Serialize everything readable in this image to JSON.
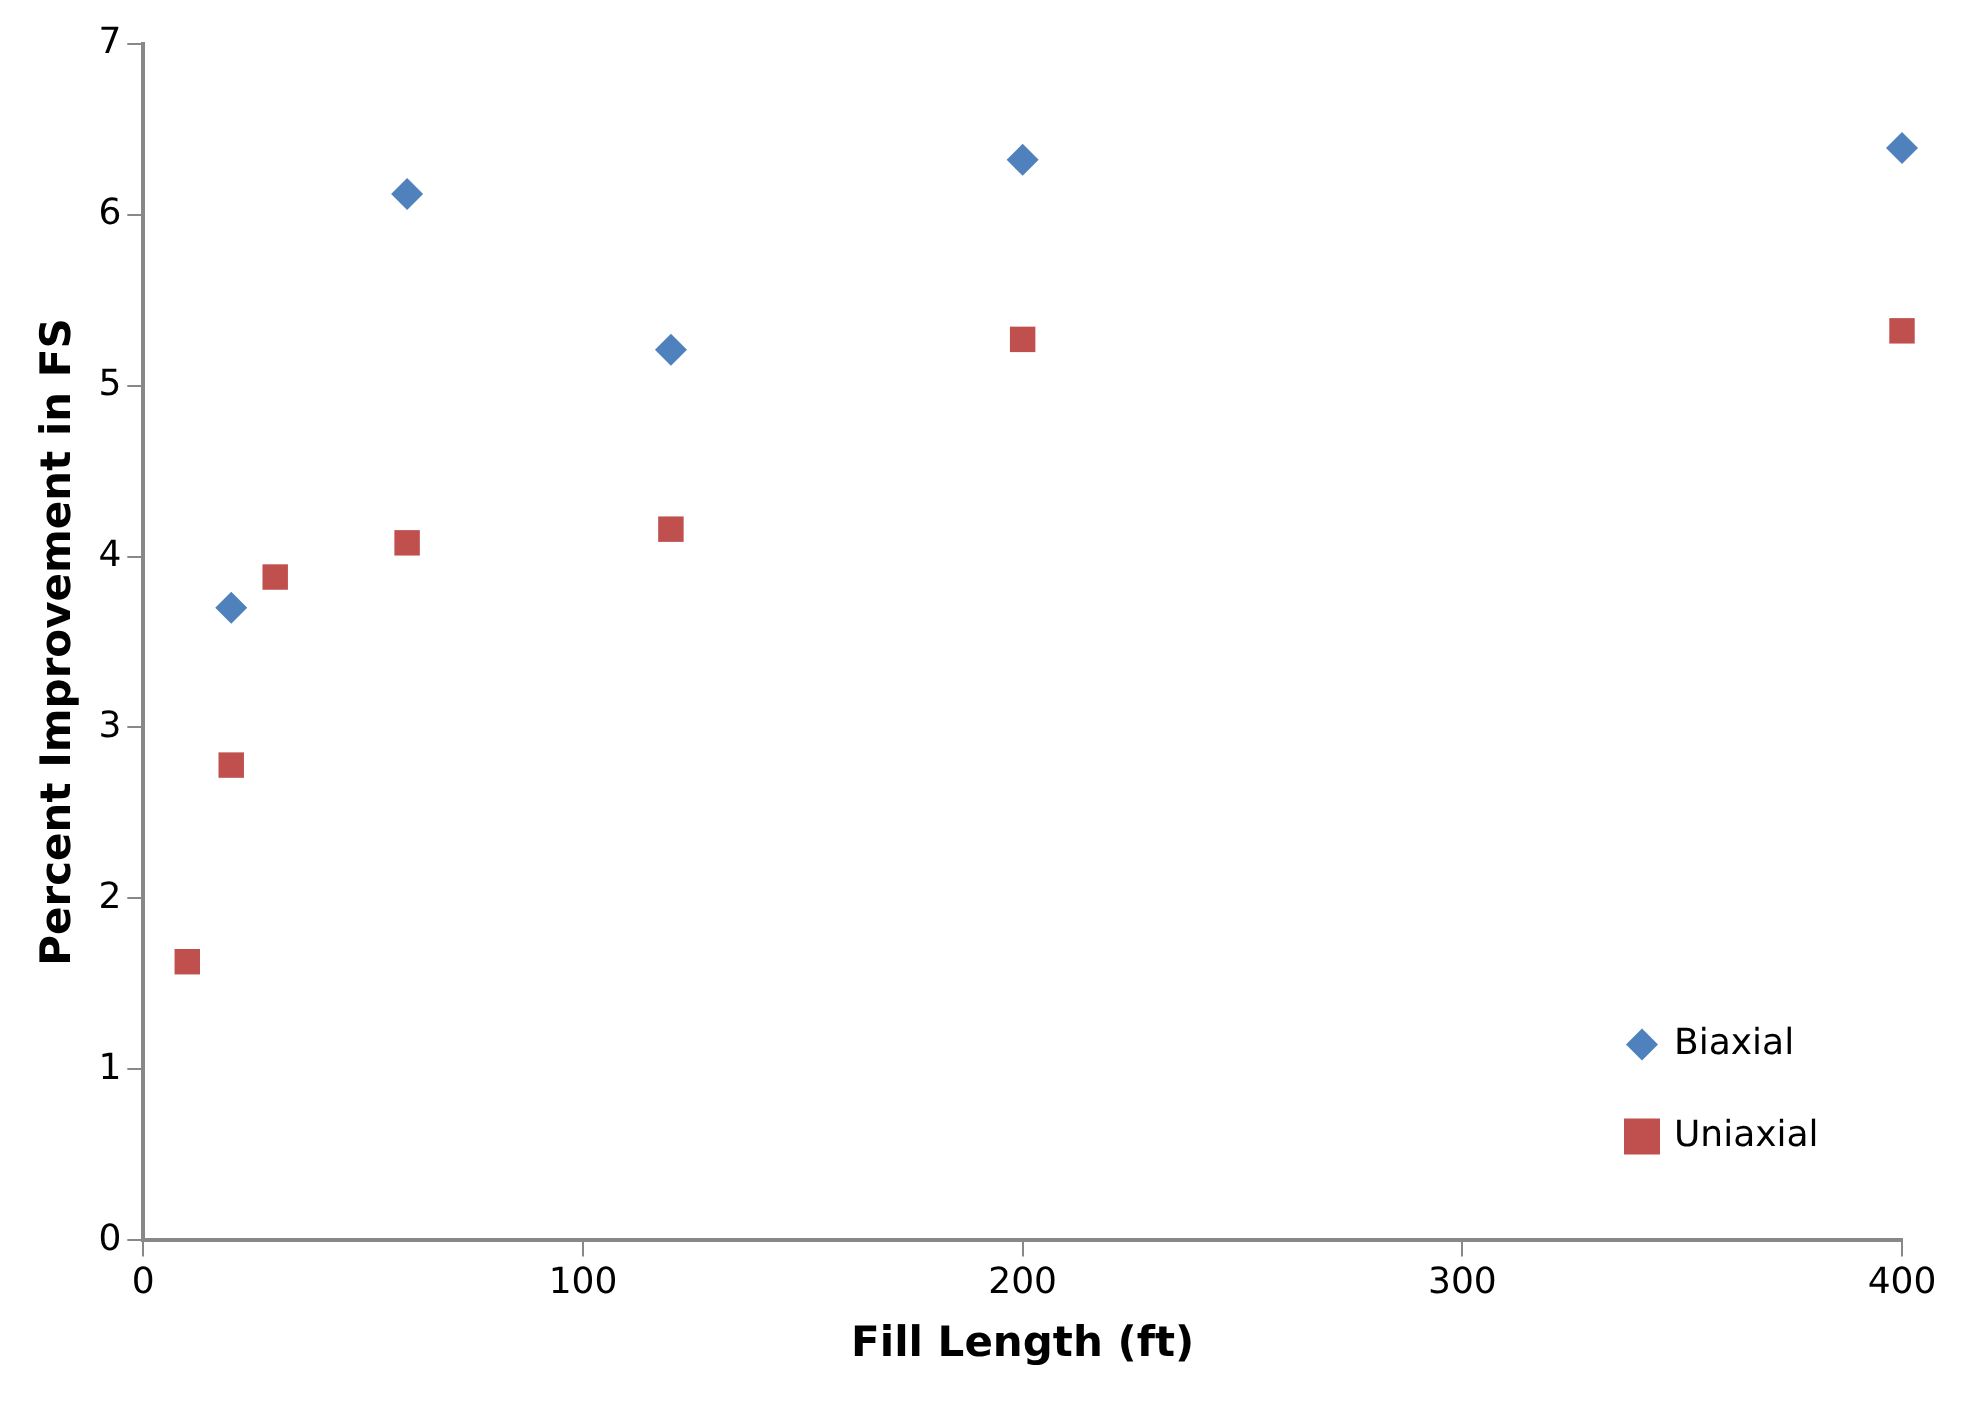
{
  "chart_data": {
    "type": "scatter",
    "xlabel": "Fill Length (ft)",
    "ylabel": "Percent Improvement in FS",
    "xlim": [
      0,
      400
    ],
    "xticks": [
      0,
      100,
      200,
      300,
      400
    ],
    "ylim": [
      0,
      7
    ],
    "yticks": [
      0,
      1,
      2,
      3,
      4,
      5,
      6,
      7
    ],
    "grid": false,
    "legend": "bottom right",
    "series": [
      {
        "name": "Biaxial",
        "color": "#4f81bd",
        "marker": "diamond",
        "x": [
          20,
          60,
          120,
          200,
          400
        ],
        "values": [
          3.7,
          6.12,
          5.21,
          6.32,
          6.39
        ]
      },
      {
        "name": "Uniaxial",
        "color": "#c0504d",
        "marker": "square",
        "x": [
          10,
          20,
          30,
          60,
          120,
          200,
          400
        ],
        "values": [
          1.63,
          2.78,
          3.88,
          4.08,
          4.16,
          5.27,
          5.32
        ]
      }
    ]
  }
}
